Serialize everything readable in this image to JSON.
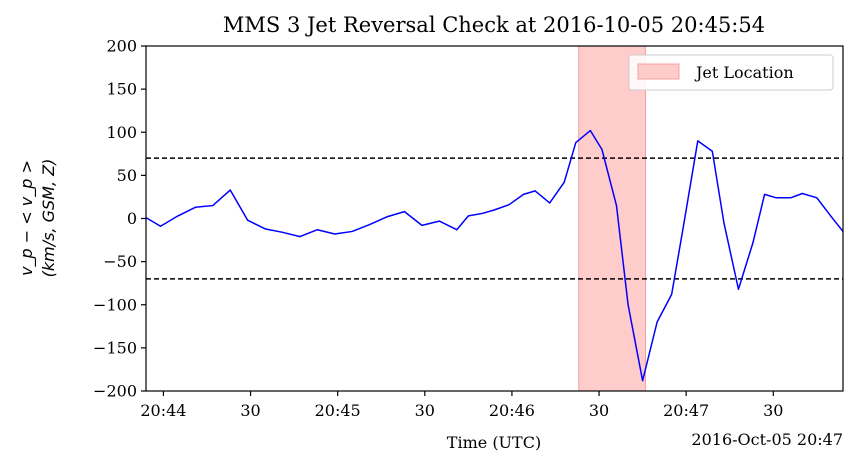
{
  "chart_data": {
    "type": "line",
    "title": "MMS 3 Jet Reversal Check at 2016-10-05 20:45:54",
    "xlabel": "Time (UTC)",
    "x_offset_label": "2016-Oct-05 20:47",
    "ylabel_line1": "v_p − < v_p >",
    "ylabel_line2": "(km/s, GSM, Z)",
    "ylim": [
      -200,
      200
    ],
    "xlim": [
      "20:43:54",
      "20:47:54"
    ],
    "y_ticks": [
      {
        "value": 200,
        "label": "200"
      },
      {
        "value": 150,
        "label": "150"
      },
      {
        "value": 100,
        "label": "100"
      },
      {
        "value": 50,
        "label": "50"
      },
      {
        "value": 0,
        "label": "0"
      },
      {
        "value": -50,
        "label": "−50"
      },
      {
        "value": -100,
        "label": "−100"
      },
      {
        "value": -150,
        "label": "−150"
      },
      {
        "value": -200,
        "label": "−200"
      }
    ],
    "x_ticks": [
      {
        "time": "20:44:00",
        "label": "20:44"
      },
      {
        "time": "20:44:30",
        "label": "30"
      },
      {
        "time": "20:45:00",
        "label": "20:45"
      },
      {
        "time": "20:45:30",
        "label": "30"
      },
      {
        "time": "20:46:00",
        "label": "20:46"
      },
      {
        "time": "20:46:30",
        "label": "30"
      },
      {
        "time": "20:47:00",
        "label": "20:47"
      },
      {
        "time": "20:47:30",
        "label": "30"
      }
    ],
    "grid": false,
    "legend": {
      "location": "top-right",
      "entries": [
        {
          "label": "Jet Location",
          "color": "#ffcccc",
          "edge": "#f4a0a0"
        }
      ]
    },
    "thresholds": [
      70,
      -70
    ],
    "threshold_color": "#000000",
    "jet_span": [
      "20:46:23",
      "20:46:46"
    ],
    "series": [
      {
        "color": "#0000ff",
        "x": [
          "20:43:54",
          "20:43:59",
          "20:44:05",
          "20:44:11",
          "20:44:17",
          "20:44:23",
          "20:44:29",
          "20:44:35",
          "20:44:41",
          "20:44:47",
          "20:44:53",
          "20:44:59",
          "20:45:05",
          "20:45:11",
          "20:45:17",
          "20:45:23",
          "20:45:29",
          "20:45:35",
          "20:45:41",
          "20:45:45",
          "20:45:50",
          "20:45:54",
          "20:45:59",
          "20:46:04",
          "20:46:08",
          "20:46:13",
          "20:46:18",
          "20:46:22",
          "20:46:27",
          "20:46:31",
          "20:46:36",
          "20:46:40",
          "20:46:45",
          "20:46:50",
          "20:46:55",
          "20:46:59",
          "20:47:04",
          "20:47:09",
          "20:47:13",
          "20:47:18",
          "20:47:23",
          "20:47:27",
          "20:47:31",
          "20:47:36",
          "20:47:40",
          "20:47:45",
          "20:47:50",
          "20:47:54"
        ],
        "y": [
          1,
          -9,
          3,
          13,
          15,
          33,
          -2,
          -12,
          -16,
          -21,
          -13,
          -18,
          -15,
          -7,
          2,
          8,
          -8,
          -3,
          -13,
          3,
          6,
          10,
          16,
          28,
          32,
          18,
          42,
          88,
          102,
          80,
          15,
          -100,
          -188,
          -120,
          -88,
          -10,
          90,
          78,
          -5,
          -82,
          -28,
          28,
          24,
          24,
          29,
          24,
          2,
          -15
        ]
      }
    ]
  }
}
